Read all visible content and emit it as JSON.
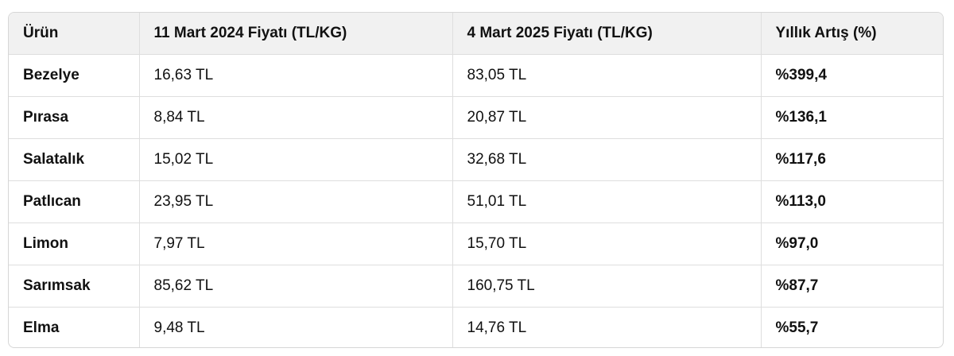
{
  "table": {
    "columns": [
      "Ürün",
      "11 Mart 2024 Fiyatı (TL/KG)",
      "4 Mart 2025 Fiyatı (TL/KG)",
      "Yıllık Artış (%)"
    ],
    "rows": [
      [
        "Bezelye",
        "16,63 TL",
        "83,05 TL",
        "%399,4"
      ],
      [
        "Pırasa",
        "8,84 TL",
        "20,87 TL",
        "%136,1"
      ],
      [
        "Salatalık",
        "15,02 TL",
        "32,68 TL",
        "%117,6"
      ],
      [
        "Patlıcan",
        "23,95 TL",
        "51,01 TL",
        "%113,0"
      ],
      [
        "Limon",
        "7,97 TL",
        "15,70 TL",
        "%97,0"
      ],
      [
        "Sarımsak",
        "85,62 TL",
        "160,75 TL",
        "%87,7"
      ],
      [
        "Elma",
        "9,48 TL",
        "14,76 TL",
        "%55,7"
      ]
    ]
  }
}
